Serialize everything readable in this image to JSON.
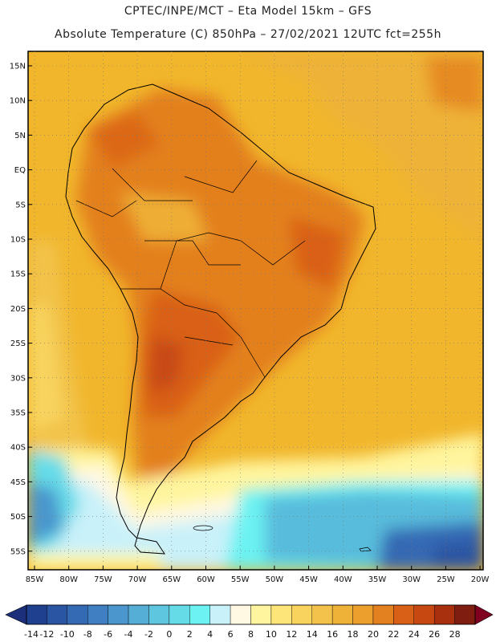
{
  "header": {
    "line1": "CPTEC/INPE/MCT –  Eta Model 15km – GFS",
    "line2": "Absolute Temperature (C) 850hPa – 27/02/2021 12UTC fct=255h"
  },
  "map": {
    "lat_labels": [
      "15N",
      "10N",
      "5N",
      "EQ",
      "5S",
      "10S",
      "15S",
      "20S",
      "25S",
      "30S",
      "35S",
      "40S",
      "45S",
      "50S",
      "55S"
    ],
    "lon_labels": [
      "85W",
      "80W",
      "75W",
      "70W",
      "65W",
      "60W",
      "55W",
      "50W",
      "45W",
      "40W",
      "35W",
      "30W",
      "25W",
      "20W"
    ],
    "lon_range": [
      -85,
      -20
    ],
    "lat_range": [
      -58,
      16
    ]
  },
  "colorbar": {
    "labels": [
      "-14",
      "-12",
      "-10",
      "-8",
      "-6",
      "-4",
      "-2",
      "0",
      "2",
      "4",
      "6",
      "8",
      "10",
      "12",
      "14",
      "16",
      "18",
      "20",
      "22",
      "24",
      "26",
      "28"
    ],
    "colors": [
      "#1f3f8f",
      "#2a55a3",
      "#3469b4",
      "#3f7fc2",
      "#4a96cd",
      "#55aed6",
      "#5fc6df",
      "#66dbe8",
      "#6cf2f2",
      "#c9f1fa",
      "#fff8e3",
      "#fff59e",
      "#fde57a",
      "#f8d45f",
      "#f2c24a",
      "#eeb238",
      "#ec9f2c",
      "#e3801f",
      "#d96117",
      "#c84812",
      "#a8300f",
      "#7f1e10"
    ],
    "under_color": "#1b2f7a",
    "over_color": "#800020"
  }
}
